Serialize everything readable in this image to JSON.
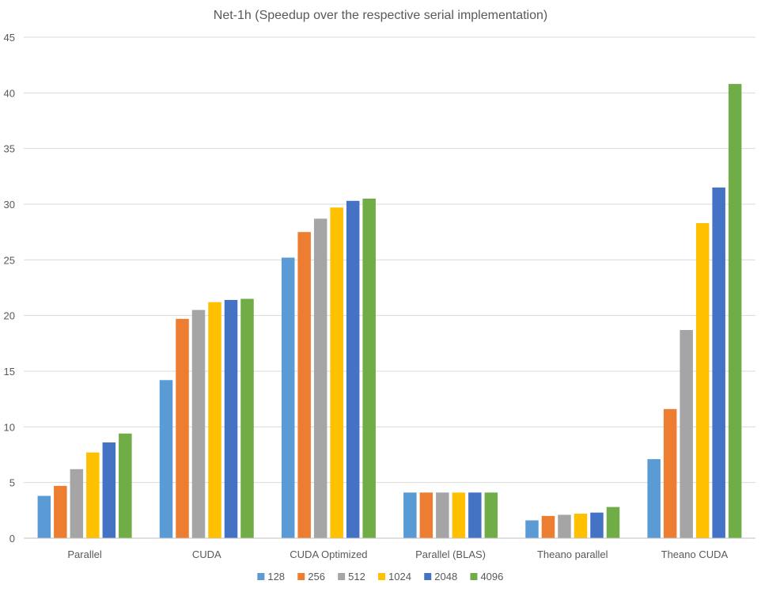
{
  "chart_data": {
    "type": "bar",
    "title": "Net-1h (Speedup over the respective serial implementation)",
    "xlabel": "",
    "ylabel": "",
    "ylim": [
      0,
      45
    ],
    "yticks": [
      0,
      5,
      10,
      15,
      20,
      25,
      30,
      35,
      40,
      45
    ],
    "grid": true,
    "legend_position": "bottom",
    "categories": [
      "Parallel",
      "CUDA",
      "CUDA Optimized",
      "Parallel (BLAS)",
      "Theano parallel",
      "Theano CUDA"
    ],
    "series": [
      {
        "name": "128",
        "color": "#5b9bd5",
        "values": [
          3.8,
          14.2,
          25.2,
          4.1,
          1.6,
          7.1
        ]
      },
      {
        "name": "256",
        "color": "#ed7d31",
        "values": [
          4.7,
          19.7,
          27.5,
          4.1,
          2.0,
          11.6
        ]
      },
      {
        "name": "512",
        "color": "#a5a5a5",
        "values": [
          6.2,
          20.5,
          28.7,
          4.1,
          2.1,
          18.7
        ]
      },
      {
        "name": "1024",
        "color": "#ffc000",
        "values": [
          7.7,
          21.2,
          29.7,
          4.1,
          2.2,
          28.3
        ]
      },
      {
        "name": "2048",
        "color": "#4472c4",
        "values": [
          8.6,
          21.4,
          30.3,
          4.1,
          2.3,
          31.5
        ]
      },
      {
        "name": "4096",
        "color": "#70ad47",
        "values": [
          9.4,
          21.5,
          30.5,
          4.1,
          2.8,
          40.8
        ]
      }
    ]
  }
}
